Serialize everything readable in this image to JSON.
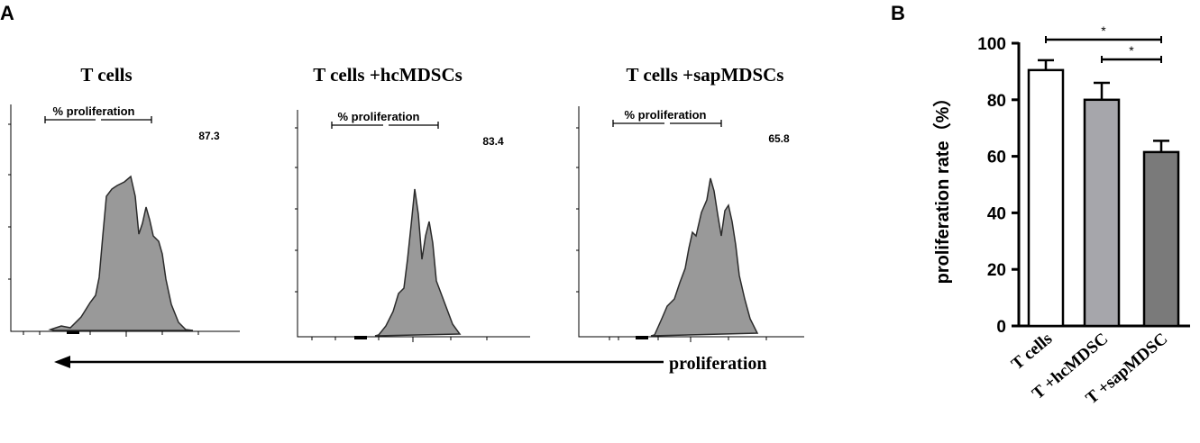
{
  "panel_a": {
    "letter": "A",
    "histograms": [
      {
        "title": "T cells",
        "gate_label": "% proliferation",
        "value": "87.3"
      },
      {
        "title": "T cells +hcMDSCs",
        "gate_label": "% proliferation",
        "value": "83.4"
      },
      {
        "title": "T cells +sapMDSCs",
        "gate_label": "% proliferation",
        "value": "65.8"
      }
    ],
    "arrow_label": "proliferation"
  },
  "panel_b": {
    "letter": "B"
  },
  "chart_data": {
    "type": "bar",
    "title": "",
    "xlabel": "",
    "ylabel": "proliferation rate（%）",
    "categories": [
      "T cells",
      "T +hcMDSC",
      "T +sapMDSC"
    ],
    "values": [
      90.5,
      80,
      61.5
    ],
    "errors": [
      3.5,
      6,
      4
    ],
    "bar_colors": [
      "#ffffff",
      "#a6a6ab",
      "#7a7a7a"
    ],
    "ylim": [
      0,
      100
    ],
    "yticks": [
      0,
      20,
      40,
      60,
      80,
      100
    ],
    "significance": [
      {
        "from": 0,
        "to": 2,
        "label": "*"
      },
      {
        "from": 1,
        "to": 2,
        "label": "*"
      }
    ]
  }
}
